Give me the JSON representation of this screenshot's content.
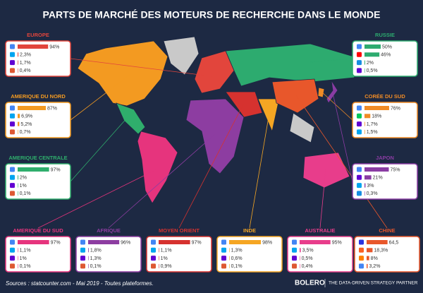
{
  "title": "PARTS DE MARCHÉ DES MOTEURS DE RECHERCHE DANS LE MONDE",
  "regions": [
    {
      "name": "EUROPE",
      "color": "#e2453c",
      "values": [
        94,
        2.3,
        1.7,
        0.4
      ],
      "value_labels": [
        "94%",
        "2,3%",
        "1,7%",
        "0,4%"
      ]
    },
    {
      "name": "AMERIQUE DU NORD",
      "color": "#f39a21",
      "values": [
        87,
        6.9,
        5.2,
        0.7
      ],
      "value_labels": [
        "87%",
        "6,9%",
        "5,2%",
        "0,7%"
      ]
    },
    {
      "name": "AMERIQUE CENTRALE",
      "color": "#2fae6c",
      "values": [
        97,
        2,
        1,
        0.1
      ],
      "value_labels": [
        "97%",
        "2%",
        "1%",
        "0,1%"
      ]
    },
    {
      "name": "AMERIQUE DU SUD",
      "color": "#e6347d",
      "values": [
        97,
        1.1,
        1,
        0.1
      ],
      "value_labels": [
        "97%",
        "1,1%",
        "1%",
        "0,1%"
      ]
    },
    {
      "name": "AFRIQUE",
      "color": "#8d3da1",
      "values": [
        96,
        1.8,
        1.3,
        0.1
      ],
      "value_labels": [
        "96%",
        "1,8%",
        "1,3%",
        "0,1%"
      ]
    },
    {
      "name": "MOYEN ORIENT",
      "color": "#d6322f",
      "values": [
        97,
        1.1,
        1,
        0.9
      ],
      "value_labels": [
        "97%",
        "1,1%",
        "1%",
        "0,9%"
      ]
    },
    {
      "name": "INDE",
      "color": "#f5a623",
      "values": [
        98,
        1.3,
        0.6,
        0.1
      ],
      "value_labels": [
        "98%",
        "1,3%",
        "0,6%",
        "0,1%"
      ]
    },
    {
      "name": "AUSTRALIE",
      "color": "#e83d8b",
      "values": [
        95,
        3.5,
        0.5,
        0.4
      ],
      "value_labels": [
        "95%",
        "3,5%",
        "0,5%",
        "0,4%"
      ]
    },
    {
      "name": "CHINE",
      "color": "#e8572b",
      "values": [
        64.5,
        18.3,
        8,
        3.2
      ],
      "value_labels": [
        "64,5",
        "18,3%",
        "8%",
        "3,2%"
      ]
    },
    {
      "name": "RUSSIE",
      "color": "#2dab6f",
      "values": [
        50,
        46,
        2,
        0.5
      ],
      "value_labels": [
        "50%",
        "46%",
        "2%",
        "0,5%"
      ]
    },
    {
      "name": "CORÉE DU SUD",
      "color": "#f08b25",
      "values": [
        76,
        18,
        1.7,
        1.5
      ],
      "value_labels": [
        "76%",
        "18%",
        "1,7%",
        "1,5%"
      ]
    },
    {
      "name": "JAPON",
      "color": "#8a3ca3",
      "values": [
        75,
        21,
        3,
        0.3
      ],
      "value_labels": [
        "75%",
        "21%",
        "3%",
        "0,3%"
      ]
    }
  ],
  "footer": {
    "source": "Sources : statcounter.com - Mai 2019 - Toutes plateformes.",
    "brand": "BOLERO",
    "tagline": "THE DATA-DRIVEN STRATEGY PARTNER"
  }
}
